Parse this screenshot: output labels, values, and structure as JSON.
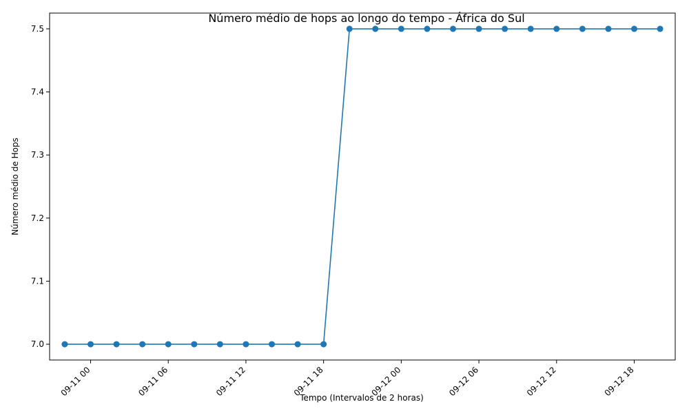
{
  "chart_data": {
    "type": "line",
    "title": "Número médio de hops ao longo do tempo - África do Sul",
    "xlabel": "Tempo (Intervalos de 2 horas)",
    "ylabel": "Número médio de Hops",
    "x_tick_labels": [
      "09-11 00",
      "09-11 06",
      "09-11 12",
      "09-11 18",
      "09-12 00",
      "09-12 06",
      "09-12 12",
      "09-12 18"
    ],
    "y_tick_labels": [
      "7.0",
      "7.1",
      "7.2",
      "7.3",
      "7.4",
      "7.5"
    ],
    "y_ticks": [
      7.0,
      7.1,
      7.2,
      7.3,
      7.4,
      7.5
    ],
    "xlim": [
      "2023-09-10 20:50",
      "2023-09-12 21:10"
    ],
    "ylim": [
      6.975,
      7.525
    ],
    "grid": false,
    "series": [
      {
        "color": "#1f77b4",
        "marker": "circle",
        "x": [
          "2023-09-10 22:00",
          "2023-09-11 00:00",
          "2023-09-11 02:00",
          "2023-09-11 04:00",
          "2023-09-11 06:00",
          "2023-09-11 08:00",
          "2023-09-11 10:00",
          "2023-09-11 12:00",
          "2023-09-11 14:00",
          "2023-09-11 16:00",
          "2023-09-11 18:00",
          "2023-09-11 20:00",
          "2023-09-11 22:00",
          "2023-09-12 00:00",
          "2023-09-12 02:00",
          "2023-09-12 04:00",
          "2023-09-12 06:00",
          "2023-09-12 08:00",
          "2023-09-12 10:00",
          "2023-09-12 12:00",
          "2023-09-12 14:00",
          "2023-09-12 16:00",
          "2023-09-12 18:00",
          "2023-09-12 20:00"
        ],
        "y": [
          7.0,
          7.0,
          7.0,
          7.0,
          7.0,
          7.0,
          7.0,
          7.0,
          7.0,
          7.0,
          7.0,
          7.5,
          7.5,
          7.5,
          7.5,
          7.5,
          7.5,
          7.5,
          7.5,
          7.5,
          7.5,
          7.5,
          7.5,
          7.5
        ]
      }
    ]
  }
}
